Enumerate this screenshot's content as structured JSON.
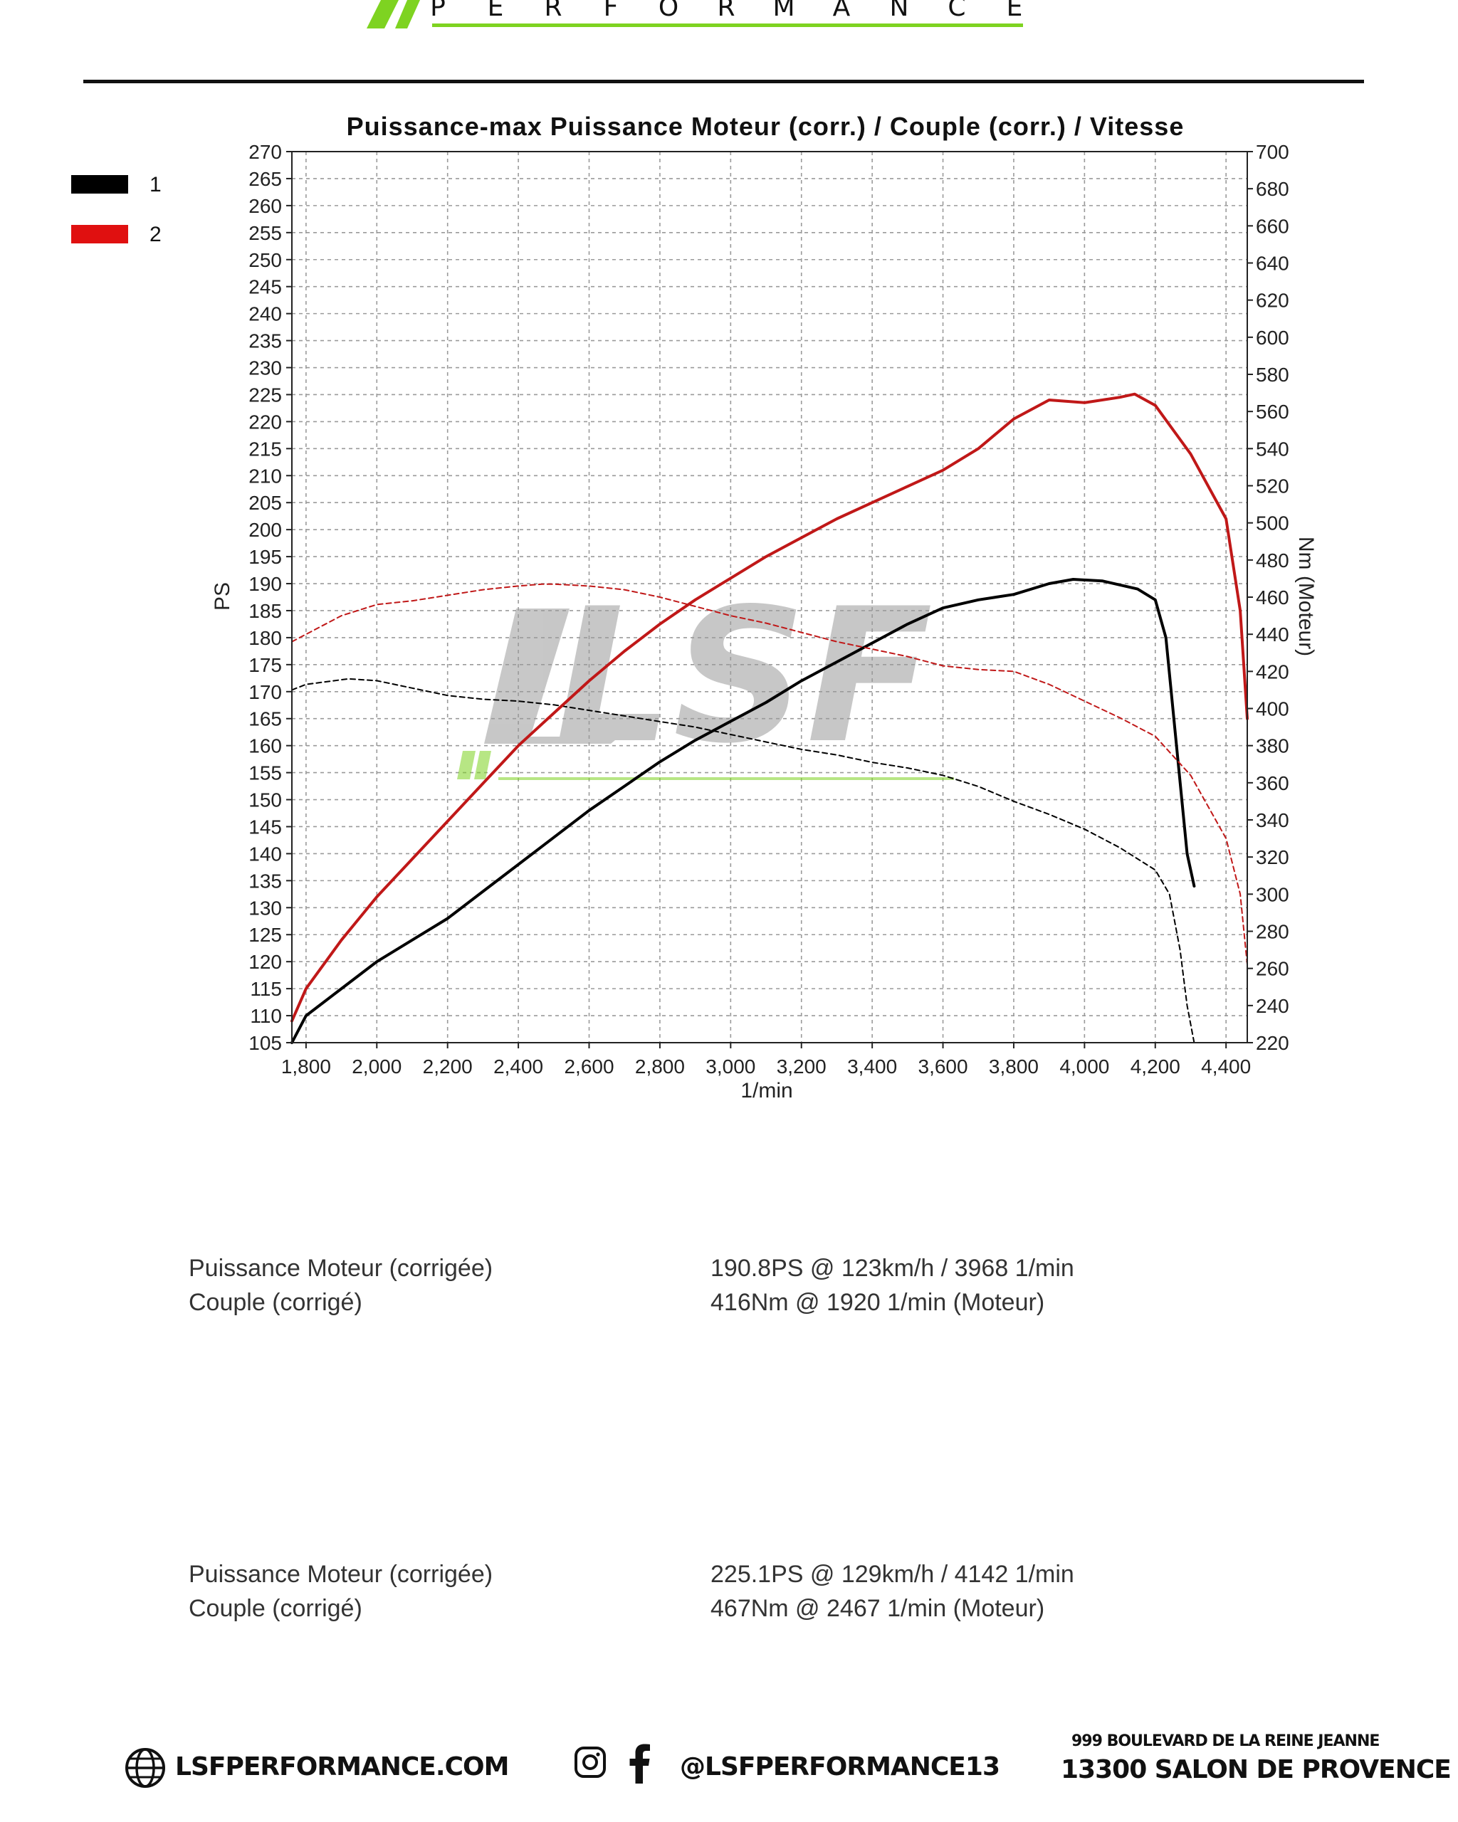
{
  "brand": {
    "tagline_letters": [
      "P",
      "E",
      "R",
      "F",
      "O",
      "R",
      "M",
      "A",
      "N",
      "C",
      "E"
    ],
    "watermark_text": "LSF",
    "accent_color": "#7ed321"
  },
  "legend": [
    {
      "label": "1",
      "color": "#000000"
    },
    {
      "label": "2",
      "color": "#e01010"
    }
  ],
  "chart_data": {
    "type": "line",
    "title": "Puissance-max Puissance Moteur (corr.) / Couple (corr.) / Vitesse",
    "xlabel": "1/min",
    "ylabel_left": "PS",
    "ylabel_right": "Nm (Moteur)",
    "xlim": [
      1760,
      4460
    ],
    "ylim_left": [
      105,
      270
    ],
    "ylim_right": [
      220,
      700
    ],
    "x_ticks": [
      1800,
      2000,
      2200,
      2400,
      2600,
      2800,
      3000,
      3200,
      3400,
      3600,
      3800,
      4000,
      4200,
      4400
    ],
    "x_tick_labels": [
      "1,800",
      "2,000",
      "2,200",
      "2,400",
      "2,600",
      "2,800",
      "3,000",
      "3,200",
      "3,400",
      "3,600",
      "3,800",
      "4,000",
      "4,200",
      "4,400"
    ],
    "y_left_ticks": [
      105,
      110,
      115,
      120,
      125,
      130,
      135,
      140,
      145,
      150,
      155,
      160,
      165,
      170,
      175,
      180,
      185,
      190,
      195,
      200,
      205,
      210,
      215,
      220,
      225,
      230,
      235,
      240,
      245,
      250,
      255,
      260,
      265,
      270
    ],
    "y_right_ticks": [
      220,
      240,
      260,
      280,
      300,
      320,
      340,
      360,
      380,
      400,
      420,
      440,
      460,
      480,
      500,
      520,
      540,
      560,
      580,
      600,
      620,
      640,
      660,
      680,
      700
    ],
    "grid": true,
    "legend_position": "left",
    "series": [
      {
        "name": "1",
        "measure": "power",
        "axis": "left",
        "style": "solid",
        "color": "#000000",
        "x": [
          1760,
          1800,
          1900,
          2000,
          2100,
          2200,
          2300,
          2400,
          2500,
          2600,
          2700,
          2800,
          2900,
          3000,
          3100,
          3200,
          3300,
          3400,
          3500,
          3600,
          3700,
          3800,
          3900,
          3968,
          4050,
          4150,
          4200,
          4230,
          4260,
          4290,
          4310
        ],
        "y": [
          105,
          110,
          115,
          120,
          124,
          128,
          133,
          138,
          143,
          148,
          152.5,
          157,
          161,
          164.5,
          168,
          172,
          175.5,
          179,
          182.5,
          185.5,
          187,
          188,
          190,
          190.8,
          190.5,
          189,
          187,
          180,
          160,
          140,
          134
        ]
      },
      {
        "name": "1",
        "measure": "torque",
        "axis": "right",
        "style": "dashed",
        "color": "#000000",
        "x": [
          1760,
          1800,
          1920,
          2000,
          2100,
          2200,
          2300,
          2400,
          2500,
          2600,
          2700,
          2800,
          2900,
          3000,
          3100,
          3200,
          3300,
          3400,
          3500,
          3600,
          3700,
          3800,
          3900,
          4000,
          4100,
          4200,
          4240,
          4270,
          4290,
          4310
        ],
        "y": [
          410,
          413,
          416,
          415,
          411,
          407,
          405,
          404,
          402,
          399,
          396,
          393,
          390,
          386,
          382,
          378,
          375,
          371,
          368,
          364,
          358,
          350,
          343,
          335,
          325,
          313,
          300,
          270,
          240,
          220
        ]
      },
      {
        "name": "2",
        "measure": "power",
        "axis": "left",
        "style": "solid",
        "color": "#c01818",
        "x": [
          1760,
          1800,
          1900,
          2000,
          2100,
          2200,
          2300,
          2400,
          2500,
          2600,
          2700,
          2800,
          2900,
          3000,
          3100,
          3200,
          3300,
          3400,
          3500,
          3600,
          3700,
          3800,
          3900,
          4000,
          4100,
          4142,
          4200,
          4300,
          4400,
          4440,
          4460
        ],
        "y": [
          109,
          115,
          124,
          132,
          139,
          146,
          153,
          160,
          166,
          172,
          177.5,
          182.5,
          187,
          191,
          195,
          198.5,
          202,
          205,
          208,
          211,
          215,
          220.5,
          224,
          223.5,
          224.5,
          225.1,
          223,
          214,
          202,
          185,
          165
        ]
      },
      {
        "name": "2",
        "measure": "torque",
        "axis": "right",
        "style": "dashed",
        "color": "#c01818",
        "x": [
          1760,
          1800,
          1900,
          2000,
          2100,
          2200,
          2300,
          2400,
          2467,
          2500,
          2600,
          2700,
          2800,
          2900,
          3000,
          3100,
          3200,
          3300,
          3400,
          3500,
          3600,
          3700,
          3800,
          3900,
          4000,
          4100,
          4200,
          4300,
          4400,
          4440,
          4460
        ],
        "y": [
          436,
          440,
          450,
          456,
          458,
          461,
          464,
          466,
          467,
          467,
          466,
          464,
          460,
          455,
          450,
          446,
          441,
          436,
          432,
          428,
          423,
          421,
          420,
          413,
          404,
          395,
          385,
          364,
          330,
          300,
          262
        ]
      }
    ]
  },
  "results": [
    {
      "rows": [
        {
          "label": "Puissance Moteur (corrigée)",
          "value": "190.8PS @ 123km/h / 3968 1/min"
        },
        {
          "label": "Couple (corrigé)",
          "value": "416Nm @ 1920 1/min (Moteur)"
        }
      ]
    },
    {
      "rows": [
        {
          "label": "Puissance Moteur (corrigée)",
          "value": "225.1PS @ 129km/h / 4142 1/min"
        },
        {
          "label": "Couple (corrigé)",
          "value": "467Nm @ 2467 1/min (Moteur)"
        }
      ]
    }
  ],
  "footer": {
    "website": "LSFPERFORMANCE.COM",
    "social_handle": "@LSFPERFORMANCE13",
    "address_line1": "999 BOULEVARD DE LA REINE JEANNE",
    "address_line2": "13300 SALON DE PROVENCE",
    "icons": [
      "globe-icon",
      "instagram-icon",
      "facebook-icon"
    ]
  }
}
